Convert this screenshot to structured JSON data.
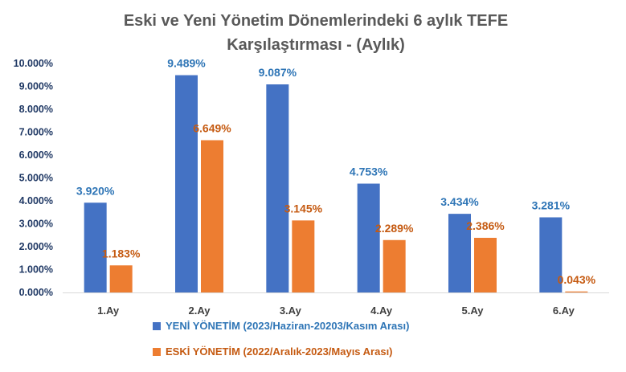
{
  "chart_data": {
    "type": "bar",
    "title_lines": [
      "Eski ve Yeni Yönetim Dönemlerindeki 6 aylık TEFE",
      "Karşılaştırması - (Aylık)"
    ],
    "categories": [
      "1.Ay",
      "2.Ay",
      "3.Ay",
      "4.Ay",
      "5.Ay",
      "6.Ay"
    ],
    "series": [
      {
        "name": "YENİ YÖNETİM (2023/Haziran-20203/Kasım Arası)",
        "color": "#4472c4",
        "label_color": "#2e75b6",
        "values": [
          3.92,
          9.489,
          9.087,
          4.753,
          3.434,
          3.281
        ],
        "labels": [
          "3.920%",
          "9.489%",
          "9.087%",
          "4.753%",
          "3.434%",
          "3.281%"
        ]
      },
      {
        "name": "ESKİ YÖNETİM (2022/Aralık-2023/Mayıs Arası)",
        "color": "#ed7d31",
        "label_color": "#c55a11",
        "values": [
          1.183,
          6.649,
          3.145,
          2.289,
          2.386,
          0.043
        ],
        "labels": [
          "1.183%",
          "6.649%",
          "3.145%",
          "2.289%",
          "2.386%",
          "0.043%"
        ]
      }
    ],
    "y_ticks": [
      "0.000%",
      "1.000%",
      "2.000%",
      "3.000%",
      "4.000%",
      "5.000%",
      "6.000%",
      "7.000%",
      "8.000%",
      "9.000%",
      "10.000%"
    ],
    "ylim": [
      0,
      10
    ],
    "grid": false,
    "legend_position": "bottom"
  }
}
